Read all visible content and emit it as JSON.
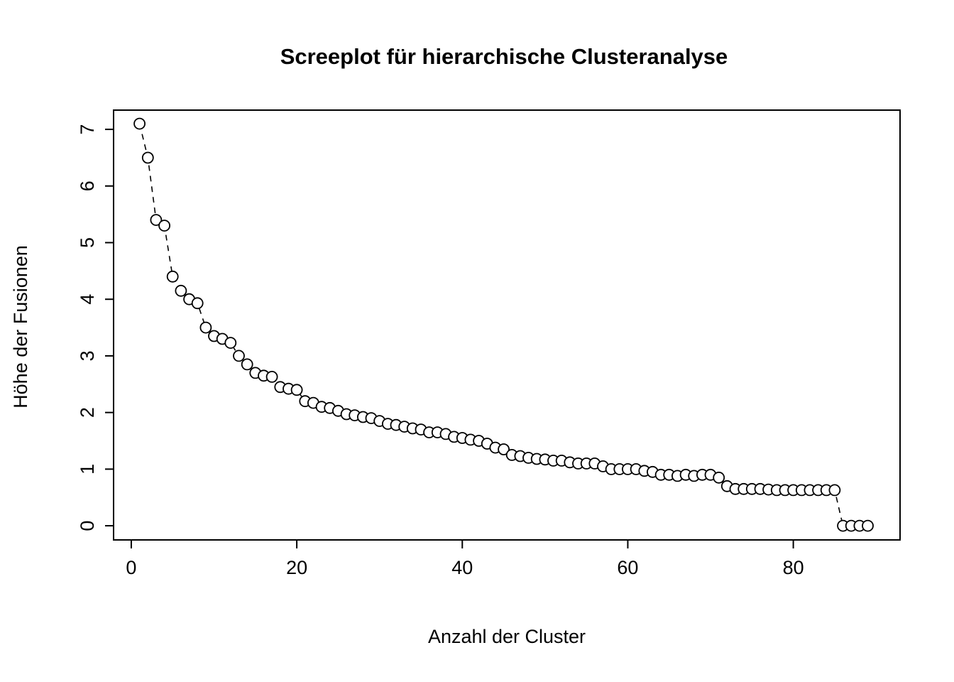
{
  "chart_data": {
    "type": "scatter",
    "title": "Screeplot für hierarchische Clusteranalyse",
    "xlabel": "Anzahl der Cluster",
    "ylabel": "Höhe der Fusionen",
    "marker": "open-circle",
    "line_style": "dashed",
    "grid": false,
    "legend": "none",
    "xlim": [
      -2.14,
      92.9
    ],
    "ylim": [
      -0.25,
      7.34
    ],
    "x_ticks": [
      0,
      20,
      40,
      60,
      80
    ],
    "y_ticks": [
      0,
      1,
      2,
      3,
      4,
      5,
      6,
      7
    ],
    "x": [
      1,
      2,
      3,
      4,
      5,
      6,
      7,
      8,
      9,
      10,
      11,
      12,
      13,
      14,
      15,
      16,
      17,
      18,
      19,
      20,
      21,
      22,
      23,
      24,
      25,
      26,
      27,
      28,
      29,
      30,
      31,
      32,
      33,
      34,
      35,
      36,
      37,
      38,
      39,
      40,
      41,
      42,
      43,
      44,
      45,
      46,
      47,
      48,
      49,
      50,
      51,
      52,
      53,
      54,
      55,
      56,
      57,
      58,
      59,
      60,
      61,
      62,
      63,
      64,
      65,
      66,
      67,
      68,
      69,
      70,
      71,
      72,
      73,
      74,
      75,
      76,
      77,
      78,
      79,
      80,
      81,
      82,
      83,
      84,
      85,
      86,
      87,
      88,
      89
    ],
    "y": [
      7.1,
      6.5,
      5.4,
      5.3,
      4.4,
      4.15,
      4.0,
      3.93,
      3.5,
      3.35,
      3.3,
      3.23,
      3.0,
      2.85,
      2.7,
      2.65,
      2.63,
      2.45,
      2.42,
      2.4,
      2.2,
      2.17,
      2.1,
      2.08,
      2.03,
      1.97,
      1.95,
      1.92,
      1.9,
      1.85,
      1.8,
      1.78,
      1.75,
      1.72,
      1.7,
      1.65,
      1.65,
      1.62,
      1.57,
      1.55,
      1.52,
      1.5,
      1.45,
      1.38,
      1.35,
      1.25,
      1.23,
      1.2,
      1.18,
      1.17,
      1.15,
      1.15,
      1.12,
      1.1,
      1.1,
      1.1,
      1.05,
      1.0,
      1.0,
      1.0,
      1.0,
      0.97,
      0.95,
      0.9,
      0.9,
      0.88,
      0.9,
      0.88,
      0.9,
      0.9,
      0.85,
      0.7,
      0.65,
      0.65,
      0.65,
      0.65,
      0.64,
      0.63,
      0.63,
      0.63,
      0.63,
      0.63,
      0.63,
      0.63,
      0.63,
      0.0,
      0.0,
      0.0,
      0.0
    ],
    "colors": {
      "point_stroke": "#000000",
      "point_fill": "#ffffff",
      "line": "#000000",
      "axis": "#000000",
      "background": "#ffffff"
    }
  }
}
